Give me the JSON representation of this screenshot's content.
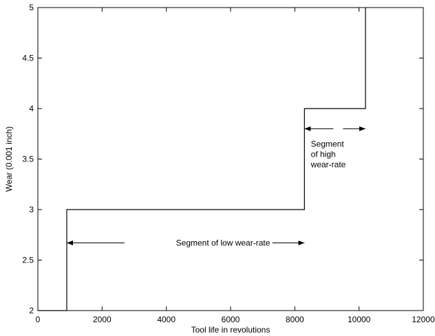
{
  "chart_data": {
    "type": "line",
    "title": "",
    "xlabel": "Tool life in revolutions",
    "ylabel": "Wear (0.001 inch)",
    "xlim": [
      0,
      12000
    ],
    "ylim": [
      2,
      5
    ],
    "xticks": [
      0,
      2000,
      4000,
      6000,
      8000,
      10000,
      12000
    ],
    "yticks": [
      2,
      2.5,
      3,
      3.5,
      4,
      4.5,
      5
    ],
    "grid": false,
    "series": [
      {
        "step": "vertical-then-horizontal",
        "points": [
          [
            0,
            2
          ],
          [
            900,
            2
          ],
          [
            900,
            3
          ],
          [
            8300,
            3
          ],
          [
            8300,
            4
          ],
          [
            10200,
            4
          ],
          [
            10200,
            5
          ]
        ],
        "color": "#000000"
      }
    ],
    "annotations": [
      {
        "lines": [
          "Segment of low wear-rate"
        ],
        "x": 4300,
        "y": 2.67,
        "arrows": [
          {
            "from": [
              2700,
              2.67
            ],
            "to": [
              900,
              2.67
            ]
          },
          {
            "from": [
              7300,
              2.67
            ],
            "to": [
              8300,
              2.67
            ]
          }
        ]
      },
      {
        "lines": [
          "Segment",
          "of high",
          "wear-rate"
        ],
        "x": 8500,
        "y": 3.65,
        "arrows": [
          {
            "from": [
              9200,
              3.8
            ],
            "to": [
              8300,
              3.8
            ]
          },
          {
            "from": [
              9500,
              3.8
            ],
            "to": [
              10200,
              3.8
            ]
          }
        ]
      }
    ]
  }
}
